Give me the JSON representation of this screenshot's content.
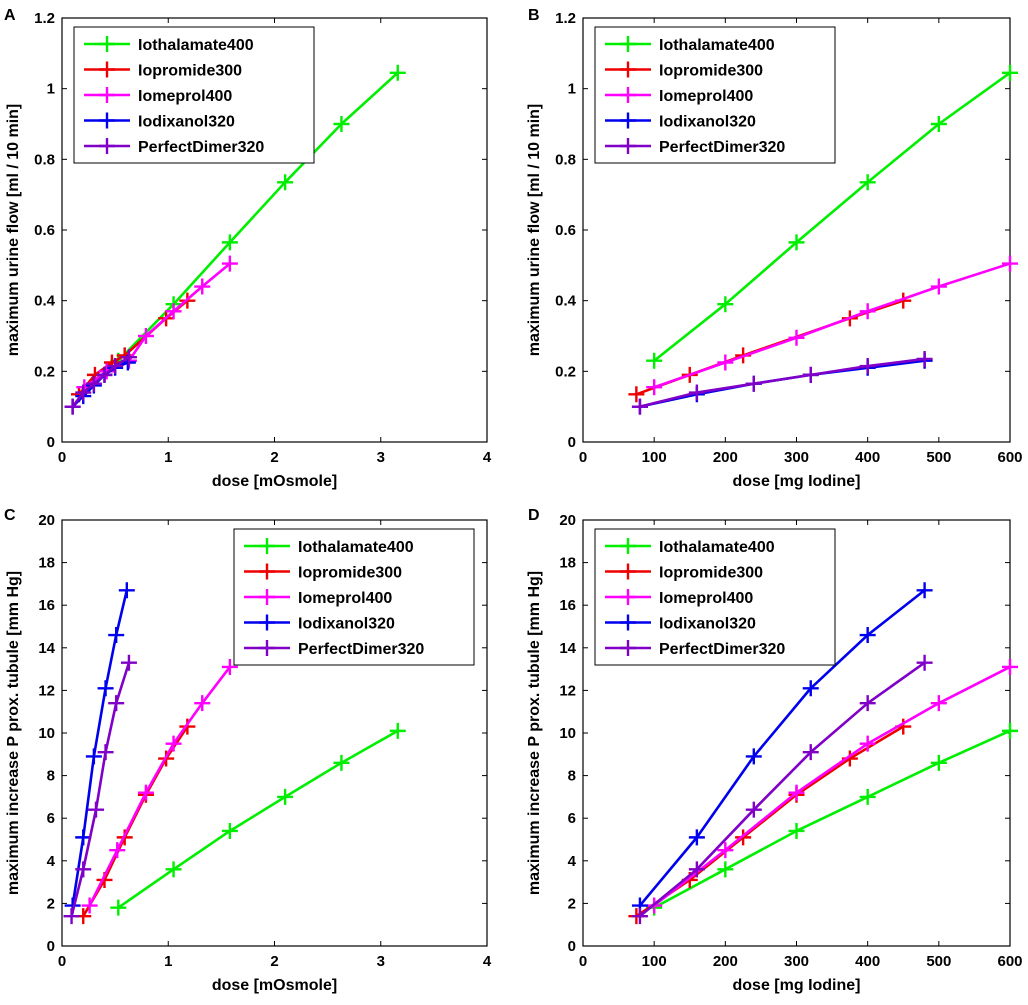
{
  "series_styles": [
    {
      "name": "Iothalamate400",
      "color": "#00ee00"
    },
    {
      "name": "Iopromide300",
      "color": "#ee0000"
    },
    {
      "name": "Iomeprol400",
      "color": "#ff00ff"
    },
    {
      "name": "Iodixanol320",
      "color": "#0000ee"
    },
    {
      "name": "PerfectDimer320",
      "color": "#8000c8"
    }
  ],
  "chart_data": [
    {
      "panel": "A",
      "type": "line",
      "xlabel": "dose [mOsmole]",
      "ylabel": "maximum urine flow [ml / 10 min]",
      "xlim": [
        0,
        4
      ],
      "ylim": [
        0,
        1.2
      ],
      "xticks": [
        "0",
        "1",
        "2",
        "3",
        "4"
      ],
      "yticks": [
        "0",
        "0.2",
        "0.4",
        "0.6",
        "0.8",
        "1",
        "1.2"
      ],
      "legend": "top-left",
      "series": [
        {
          "name": "Iothalamate400",
          "x": [
            0.53,
            1.05,
            1.58,
            2.1,
            2.63,
            3.16
          ],
          "y": [
            0.23,
            0.39,
            0.565,
            0.735,
            0.9,
            1.045
          ]
        },
        {
          "name": "Iopromide300",
          "x": [
            0.16,
            0.31,
            0.47,
            0.59,
            0.98,
            1.18
          ],
          "y": [
            0.135,
            0.19,
            0.225,
            0.245,
            0.35,
            0.4
          ]
        },
        {
          "name": "Iomeprol400",
          "x": [
            0.21,
            0.42,
            0.63,
            0.79,
            1.05,
            1.32,
            1.58
          ],
          "y": [
            0.155,
            0.2,
            0.23,
            0.3,
            0.37,
            0.44,
            0.505
          ]
        },
        {
          "name": "Iodixanol320",
          "x": [
            0.1,
            0.2,
            0.3,
            0.4,
            0.5,
            0.62
          ],
          "y": [
            0.1,
            0.13,
            0.16,
            0.19,
            0.21,
            0.225
          ]
        },
        {
          "name": "PerfectDimer320",
          "x": [
            0.1,
            0.2,
            0.3,
            0.4,
            0.5,
            0.63
          ],
          "y": [
            0.1,
            0.14,
            0.165,
            0.19,
            0.215,
            0.24
          ]
        }
      ]
    },
    {
      "panel": "B",
      "type": "line",
      "xlabel": "dose [mg Iodine]",
      "ylabel": "maximum urine flow [ml / 10 min]",
      "xlim": [
        0,
        600
      ],
      "ylim": [
        0,
        1.2
      ],
      "xticks": [
        "0",
        "100",
        "200",
        "300",
        "400",
        "500",
        "600"
      ],
      "yticks": [
        "0",
        "0.2",
        "0.4",
        "0.6",
        "0.8",
        "1",
        "1.2"
      ],
      "legend": "top-left",
      "series": [
        {
          "name": "Iothalamate400",
          "x": [
            100,
            200,
            300,
            400,
            500,
            600
          ],
          "y": [
            0.23,
            0.39,
            0.565,
            0.735,
            0.9,
            1.045
          ]
        },
        {
          "name": "Iopromide300",
          "x": [
            75,
            150,
            225,
            375,
            450
          ],
          "y": [
            0.135,
            0.19,
            0.245,
            0.35,
            0.4
          ]
        },
        {
          "name": "Iomeprol400",
          "x": [
            100,
            200,
            300,
            400,
            500,
            600
          ],
          "y": [
            0.155,
            0.225,
            0.295,
            0.37,
            0.44,
            0.505
          ]
        },
        {
          "name": "Iodixanol320",
          "x": [
            80,
            160,
            240,
            320,
            400,
            480
          ],
          "y": [
            0.1,
            0.135,
            0.165,
            0.19,
            0.21,
            0.23
          ]
        },
        {
          "name": "PerfectDimer320",
          "x": [
            80,
            160,
            240,
            320,
            400,
            480
          ],
          "y": [
            0.1,
            0.14,
            0.165,
            0.19,
            0.215,
            0.235
          ]
        }
      ]
    },
    {
      "panel": "C",
      "type": "line",
      "xlabel": "dose [mOsmole]",
      "ylabel": "maximum increase P prox. tubule [mm Hg]",
      "xlim": [
        0,
        4
      ],
      "ylim": [
        0,
        20
      ],
      "xticks": [
        "0",
        "1",
        "2",
        "3",
        "4"
      ],
      "yticks": [
        "0",
        "2",
        "4",
        "6",
        "8",
        "10",
        "12",
        "14",
        "16",
        "18",
        "20"
      ],
      "legend": "top-right",
      "series": [
        {
          "name": "Iothalamate400",
          "x": [
            0.53,
            1.05,
            1.58,
            2.1,
            2.63,
            3.16
          ],
          "y": [
            1.8,
            3.6,
            5.4,
            7.0,
            8.6,
            10.1
          ]
        },
        {
          "name": "Iopromide300",
          "x": [
            0.2,
            0.4,
            0.59,
            0.79,
            0.98,
            1.18
          ],
          "y": [
            1.4,
            3.1,
            5.1,
            7.1,
            8.8,
            10.3
          ]
        },
        {
          "name": "Iomeprol400",
          "x": [
            0.26,
            0.52,
            0.79,
            1.05,
            1.32,
            1.58
          ],
          "y": [
            1.9,
            4.5,
            7.2,
            9.5,
            11.4,
            13.1
          ]
        },
        {
          "name": "Iodixanol320",
          "x": [
            0.1,
            0.2,
            0.3,
            0.41,
            0.51,
            0.61
          ],
          "y": [
            1.9,
            5.1,
            8.9,
            12.1,
            14.6,
            16.7
          ]
        },
        {
          "name": "PerfectDimer320",
          "x": [
            0.09,
            0.2,
            0.32,
            0.41,
            0.51,
            0.63
          ],
          "y": [
            1.4,
            3.6,
            6.4,
            9.1,
            11.4,
            13.3
          ]
        }
      ]
    },
    {
      "panel": "D",
      "type": "line",
      "xlabel": "dose [mg Iodine]",
      "ylabel": "maximum increase P prox. tubule [mm Hg]",
      "xlim": [
        0,
        600
      ],
      "ylim": [
        0,
        20
      ],
      "xticks": [
        "0",
        "100",
        "200",
        "300",
        "400",
        "500",
        "600"
      ],
      "yticks": [
        "0",
        "2",
        "4",
        "6",
        "8",
        "10",
        "12",
        "14",
        "16",
        "18",
        "20"
      ],
      "legend": "top-left",
      "series": [
        {
          "name": "Iothalamate400",
          "x": [
            100,
            200,
            300,
            400,
            500,
            600
          ],
          "y": [
            1.8,
            3.6,
            5.4,
            7.0,
            8.6,
            10.1
          ]
        },
        {
          "name": "Iopromide300",
          "x": [
            75,
            150,
            225,
            300,
            375,
            450
          ],
          "y": [
            1.4,
            3.1,
            5.1,
            7.1,
            8.8,
            10.3
          ]
        },
        {
          "name": "Iomeprol400",
          "x": [
            100,
            200,
            300,
            400,
            500,
            600
          ],
          "y": [
            1.9,
            4.5,
            7.2,
            9.5,
            11.4,
            13.1
          ]
        },
        {
          "name": "Iodixanol320",
          "x": [
            80,
            160,
            240,
            320,
            400,
            480
          ],
          "y": [
            1.9,
            5.1,
            8.9,
            12.1,
            14.6,
            16.7
          ]
        },
        {
          "name": "PerfectDimer320",
          "x": [
            80,
            160,
            240,
            320,
            400,
            480
          ],
          "y": [
            1.4,
            3.6,
            6.4,
            9.1,
            11.4,
            13.3
          ]
        }
      ]
    }
  ]
}
